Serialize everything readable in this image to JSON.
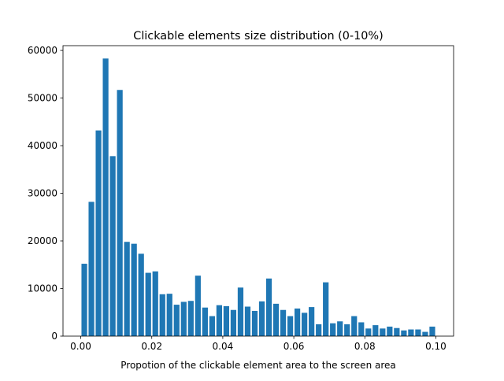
{
  "chart_data": {
    "type": "bar",
    "title": "Clickable elements size distribution (0-10%)",
    "xlabel": "Propotion of the clickable element area to the screen area",
    "ylabel": "",
    "xlim": [
      -0.005,
      0.105
    ],
    "ylim": [
      0,
      61000
    ],
    "bar_width": 0.0016,
    "bar_color": "#1f77b4",
    "grid": false,
    "legend": "none",
    "x_ticks": [
      0.0,
      0.02,
      0.04,
      0.06,
      0.08,
      0.1
    ],
    "x_tick_labels": [
      "0.00",
      "0.02",
      "0.04",
      "0.06",
      "0.08",
      "0.10"
    ],
    "y_ticks": [
      0,
      10000,
      20000,
      30000,
      40000,
      50000,
      60000
    ],
    "y_tick_labels": [
      "0",
      "10000",
      "20000",
      "30000",
      "40000",
      "50000",
      "60000"
    ],
    "x": [
      0.001,
      0.003,
      0.005,
      0.007,
      0.009,
      0.011,
      0.013,
      0.015,
      0.017,
      0.019,
      0.021,
      0.023,
      0.025,
      0.027,
      0.029,
      0.031,
      0.033,
      0.035,
      0.037,
      0.039,
      0.041,
      0.043,
      0.045,
      0.047,
      0.049,
      0.051,
      0.053,
      0.055,
      0.057,
      0.059,
      0.061,
      0.063,
      0.065,
      0.067,
      0.069,
      0.071,
      0.073,
      0.075,
      0.077,
      0.079,
      0.081,
      0.083,
      0.085,
      0.087,
      0.089,
      0.091,
      0.093,
      0.095,
      0.097,
      0.099
    ],
    "values": [
      15200,
      28200,
      43200,
      58300,
      37800,
      51700,
      19800,
      19400,
      17300,
      13300,
      13600,
      8800,
      8900,
      6600,
      7200,
      7400,
      12700,
      6000,
      4200,
      6500,
      6300,
      5500,
      10200,
      6200,
      5300,
      7300,
      12100,
      6800,
      5500,
      4200,
      5800,
      4900,
      6100,
      2500,
      11300,
      2700,
      3100,
      2500,
      4200,
      2900,
      1600,
      2300,
      1600,
      2000,
      1700,
      1200,
      1400,
      1400,
      900,
      2000
    ]
  }
}
